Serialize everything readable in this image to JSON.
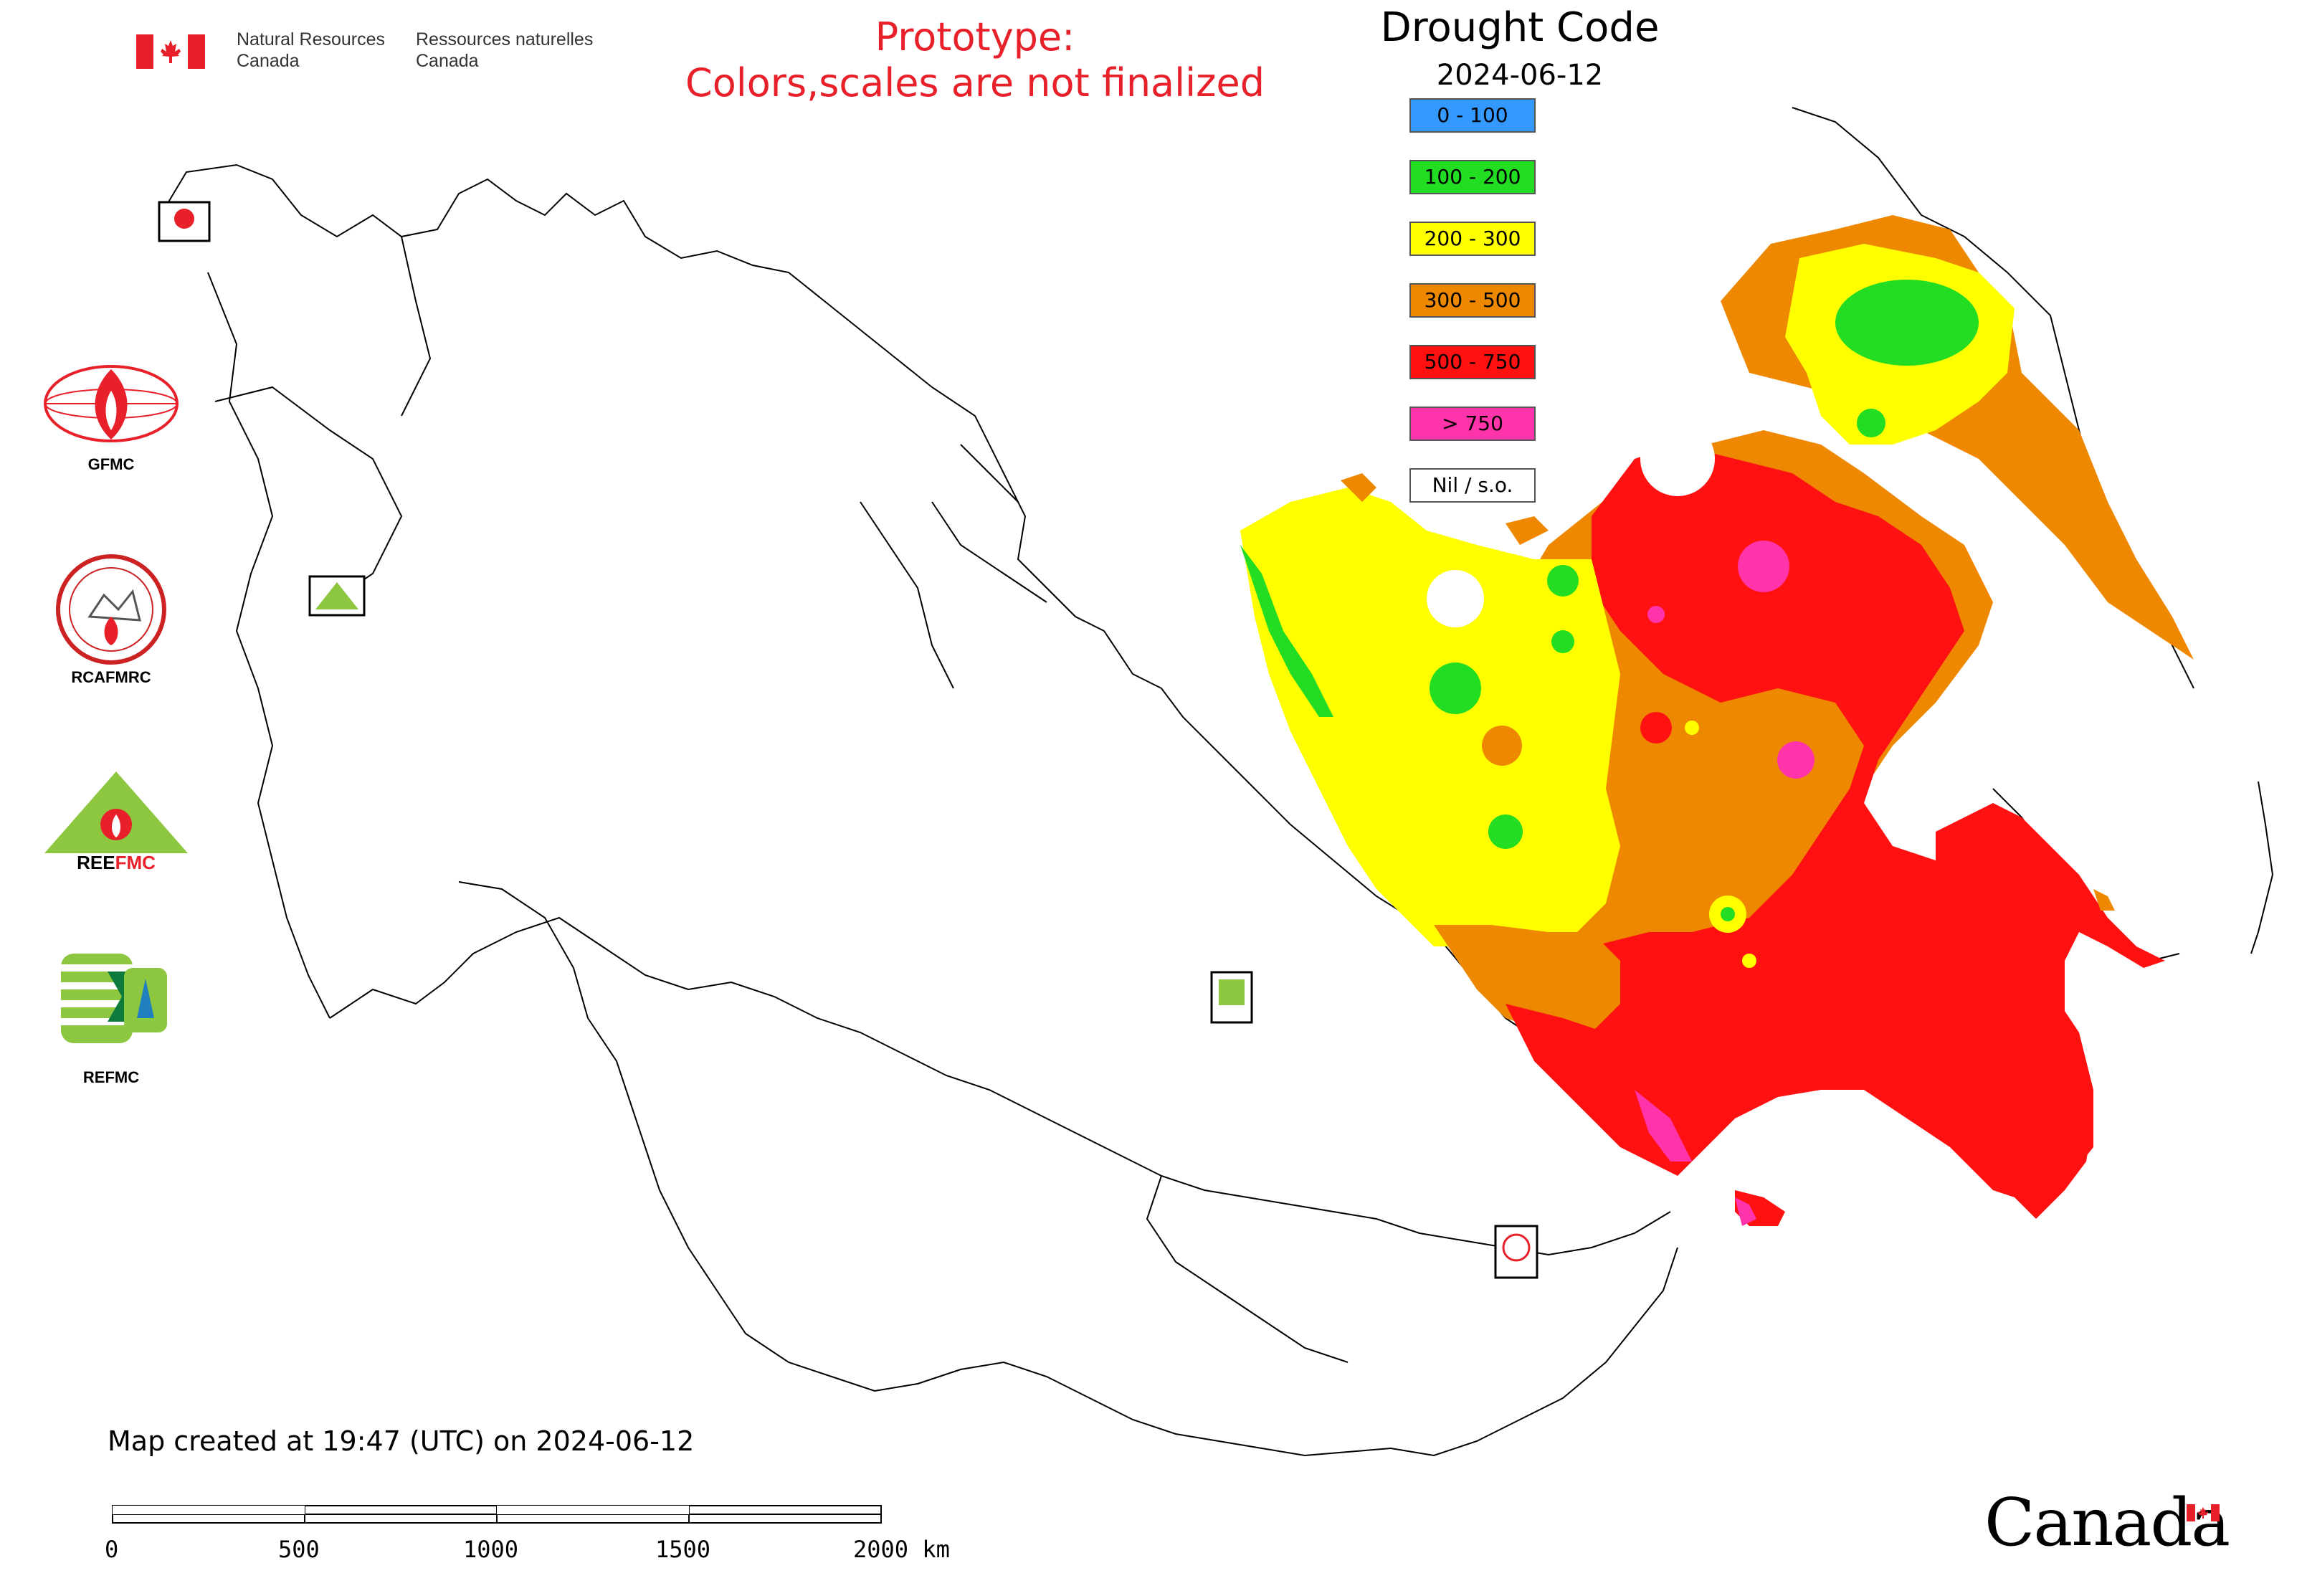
{
  "header": {
    "agency_en_line1": "Natural Resources",
    "agency_en_line2": "Canada",
    "agency_fr_line1": "Ressources naturelles",
    "agency_fr_line2": "Canada",
    "prototype_line1": "Prototype:",
    "prototype_line2": "Colors,scales are not finalized"
  },
  "map": {
    "title": "Drought Code",
    "date": "2024-06-12",
    "created_note": "Map created at 19:47 (UTC) on 2024-06-12"
  },
  "legend": [
    {
      "label": "0 - 100",
      "color": "#3399ff"
    },
    {
      "label": "100 - 200",
      "color": "#22dd22"
    },
    {
      "label": "200 - 300",
      "color": "#ffff00"
    },
    {
      "label": "300 - 500",
      "color": "#ee8800"
    },
    {
      "label": "500 - 750",
      "color": "#ff1111"
    },
    {
      "label": "> 750",
      "color": "#ff33aa"
    },
    {
      "label": "Nil / s.o.",
      "color": "#ffffff"
    }
  ],
  "logos": [
    {
      "name": "GFMC",
      "label": "GFMC"
    },
    {
      "name": "RCAFMRC",
      "label": "RCAFMRC"
    },
    {
      "name": "REEFMC",
      "label": ""
    },
    {
      "name": "REFMC",
      "label": "REFMC"
    }
  ],
  "scale_bar": {
    "ticks": [
      "0",
      "500",
      "1000",
      "1500",
      "2000 km"
    ]
  },
  "footer": {
    "wordmark": "Canada"
  }
}
